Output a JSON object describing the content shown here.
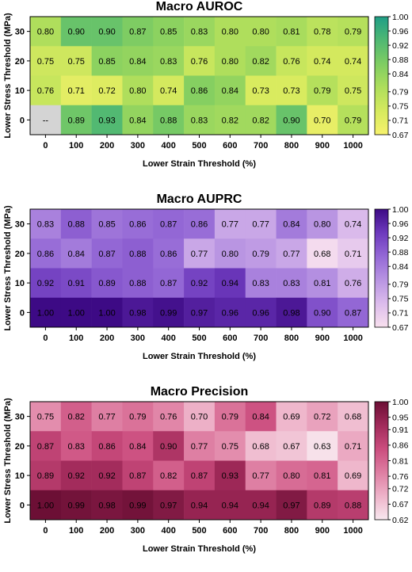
{
  "chart_data": [
    {
      "type": "heatmap",
      "title": "Macro AUROC",
      "x_label": "Lower Strain Threshold (%)",
      "y_label": "Lower Stress Threshold (MPa)",
      "categories": [
        "0",
        "100",
        "200",
        "300",
        "400",
        "500",
        "600",
        "700",
        "800",
        "900",
        "1000"
      ],
      "rows": [
        "30",
        "20",
        "10",
        "0"
      ],
      "values": [
        [
          0.8,
          0.9,
          0.9,
          0.87,
          0.85,
          0.83,
          0.8,
          0.8,
          0.81,
          0.78,
          0.79
        ],
        [
          0.75,
          0.75,
          0.85,
          0.84,
          0.83,
          0.76,
          0.8,
          0.82,
          0.76,
          0.74,
          0.74
        ],
        [
          0.76,
          0.71,
          0.72,
          0.8,
          0.74,
          0.86,
          0.84,
          0.73,
          0.73,
          0.79,
          0.75
        ],
        [
          null,
          0.89,
          0.93,
          0.84,
          0.88,
          0.83,
          0.82,
          0.82,
          0.9,
          0.7,
          0.79
        ]
      ],
      "value_labels": [
        [
          "0.80",
          "0.90",
          "0.90",
          "0.87",
          "0.85",
          "0.83",
          "0.80",
          "0.80",
          "0.81",
          "0.78",
          "0.79"
        ],
        [
          "0.75",
          "0.75",
          "0.85",
          "0.84",
          "0.83",
          "0.76",
          "0.80",
          "0.82",
          "0.76",
          "0.74",
          "0.74"
        ],
        [
          "0.76",
          "0.71",
          "0.72",
          "0.80",
          "0.74",
          "0.86",
          "0.84",
          "0.73",
          "0.73",
          "0.79",
          "0.75"
        ],
        [
          "--",
          "0.89",
          "0.93",
          "0.84",
          "0.88",
          "0.83",
          "0.82",
          "0.82",
          "0.90",
          "0.70",
          "0.79"
        ]
      ],
      "clim": [
        0.67,
        1.0
      ],
      "cticks": [
        0.67,
        0.71,
        0.75,
        0.79,
        0.84,
        0.88,
        0.92,
        0.96,
        {
          "value": 1.0,
          "label": "1.00"
        }
      ],
      "colormap": [
        "#f7f26c",
        "#d6ea5e",
        "#aede5c",
        "#7fcd62",
        "#4fb873",
        "#1f9e86"
      ],
      "missing_color": "#d4d4d4"
    },
    {
      "type": "heatmap",
      "title": "Macro AUPRC",
      "x_label": "Lower Strain Threshold (%)",
      "y_label": "Lower Stress Threshold (MPa)",
      "categories": [
        "0",
        "100",
        "200",
        "300",
        "400",
        "500",
        "600",
        "700",
        "800",
        "900",
        "1000"
      ],
      "rows": [
        "30",
        "20",
        "10",
        "0"
      ],
      "values": [
        [
          0.83,
          0.88,
          0.85,
          0.86,
          0.87,
          0.86,
          0.77,
          0.77,
          0.84,
          0.8,
          0.74
        ],
        [
          0.86,
          0.84,
          0.87,
          0.88,
          0.86,
          0.77,
          0.8,
          0.79,
          0.77,
          0.68,
          0.71
        ],
        [
          0.92,
          0.91,
          0.89,
          0.88,
          0.87,
          0.92,
          0.94,
          0.83,
          0.83,
          0.81,
          0.76
        ],
        [
          1.0,
          1.0,
          1.0,
          0.98,
          0.99,
          0.97,
          0.96,
          0.96,
          0.98,
          0.9,
          0.87
        ]
      ],
      "value_labels": [
        [
          "0.83",
          "0.88",
          "0.85",
          "0.86",
          "0.87",
          "0.86",
          "0.77",
          "0.77",
          "0.84",
          "0.80",
          "0.74"
        ],
        [
          "0.86",
          "0.84",
          "0.87",
          "0.88",
          "0.86",
          "0.77",
          "0.80",
          "0.79",
          "0.77",
          "0.68",
          "0.71"
        ],
        [
          "0.92",
          "0.91",
          "0.89",
          "0.88",
          "0.87",
          "0.92",
          "0.94",
          "0.83",
          "0.83",
          "0.81",
          "0.76"
        ],
        [
          "1.00",
          "1.00",
          "1.00",
          "0.98",
          "0.99",
          "0.97",
          "0.96",
          "0.96",
          "0.98",
          "0.90",
          "0.87"
        ]
      ],
      "clim": [
        0.67,
        1.0
      ],
      "cticks": [
        0.67,
        0.71,
        0.75,
        0.79,
        0.84,
        0.88,
        0.92,
        0.96,
        {
          "value": 1.0,
          "label": "1.00"
        }
      ],
      "colormap": [
        "#f8e0ee",
        "#dcbcec",
        "#b894e2",
        "#9468d6",
        "#6d39bd",
        "#3d0a85"
      ],
      "missing_color": "#d4d4d4"
    },
    {
      "type": "heatmap",
      "title": "Macro Precision",
      "x_label": "Lower Strain Threshold (%)",
      "y_label": "Lower Stress Threshold (MPa)",
      "categories": [
        "0",
        "100",
        "200",
        "300",
        "400",
        "500",
        "600",
        "700",
        "800",
        "900",
        "1000"
      ],
      "rows": [
        "30",
        "20",
        "10",
        "0"
      ],
      "values": [
        [
          0.75,
          0.82,
          0.77,
          0.79,
          0.76,
          0.7,
          0.79,
          0.84,
          0.69,
          0.72,
          0.68
        ],
        [
          0.87,
          0.83,
          0.86,
          0.84,
          0.9,
          0.77,
          0.75,
          0.68,
          0.67,
          0.63,
          0.71
        ],
        [
          0.89,
          0.92,
          0.92,
          0.87,
          0.82,
          0.87,
          0.93,
          0.77,
          0.8,
          0.81,
          0.69
        ],
        [
          1.0,
          0.99,
          0.98,
          0.99,
          0.97,
          0.94,
          0.94,
          0.94,
          0.97,
          0.89,
          0.88
        ]
      ],
      "value_labels": [
        [
          "0.75",
          "0.82",
          "0.77",
          "0.79",
          "0.76",
          "0.70",
          "0.79",
          "0.84",
          "0.69",
          "0.72",
          "0.68"
        ],
        [
          "0.87",
          "0.83",
          "0.86",
          "0.84",
          "0.90",
          "0.77",
          "0.75",
          "0.68",
          "0.67",
          "0.63",
          "0.71"
        ],
        [
          "0.89",
          "0.92",
          "0.92",
          "0.87",
          "0.82",
          "0.87",
          "0.93",
          "0.77",
          "0.80",
          "0.81",
          "0.69"
        ],
        [
          "1.00",
          "0.99",
          "0.98",
          "0.99",
          "0.97",
          "0.94",
          "0.94",
          "0.94",
          "0.97",
          "0.89",
          "0.88"
        ]
      ],
      "clim": [
        0.62,
        1.0
      ],
      "cticks": [
        0.62,
        0.67,
        0.72,
        0.76,
        0.81,
        0.86,
        0.91,
        0.95,
        {
          "value": 1.0,
          "label": "1.00"
        }
      ],
      "colormap": [
        "#f8e8ef",
        "#eeb3c9",
        "#de7ea2",
        "#cb4d7e",
        "#a12a5a",
        "#6c0f35"
      ],
      "missing_color": "#d4d4d4"
    }
  ]
}
